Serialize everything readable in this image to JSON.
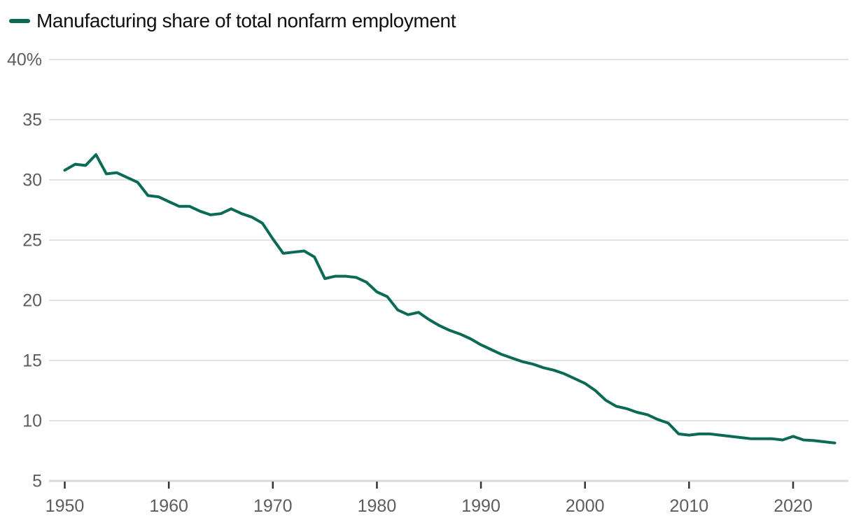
{
  "colors": {
    "line": "#0b6a55",
    "grid": "#e2e2e2",
    "axis_line": "#d9d9d9",
    "tick": "#333333",
    "axis_text": "#5d5d5d",
    "title_text": "#0f0f0f",
    "background": "#ffffff"
  },
  "chart_data": {
    "type": "line",
    "title": "Manufacturing share of total nonfarm employment",
    "xlabel": "",
    "ylabel": "",
    "unit": "%",
    "grid": "horizontal",
    "legend_position": "top-left",
    "xlim": [
      1950,
      2024
    ],
    "ylim": [
      5,
      40
    ],
    "y_ticks": [
      40,
      35,
      30,
      25,
      20,
      15,
      10,
      5
    ],
    "y_tick_labels": [
      "40%",
      "35",
      "30",
      "25",
      "20",
      "15",
      "10",
      "5"
    ],
    "x_ticks": [
      1950,
      1960,
      1970,
      1980,
      1990,
      2000,
      2010,
      2020
    ],
    "x_tick_labels": [
      "1950",
      "1960",
      "1970",
      "1980",
      "1990",
      "2000",
      "2010",
      "2020"
    ],
    "series": [
      {
        "name": "Manufacturing share of total nonfarm employment",
        "x": [
          1950,
          1951,
          1952,
          1953,
          1954,
          1955,
          1956,
          1957,
          1958,
          1959,
          1960,
          1961,
          1962,
          1963,
          1964,
          1965,
          1966,
          1967,
          1968,
          1969,
          1970,
          1971,
          1972,
          1973,
          1974,
          1975,
          1976,
          1977,
          1978,
          1979,
          1980,
          1981,
          1982,
          1983,
          1984,
          1985,
          1986,
          1987,
          1988,
          1989,
          1990,
          1991,
          1992,
          1993,
          1994,
          1995,
          1996,
          1997,
          1998,
          1999,
          2000,
          2001,
          2002,
          2003,
          2004,
          2005,
          2006,
          2007,
          2008,
          2009,
          2010,
          2011,
          2012,
          2013,
          2014,
          2015,
          2016,
          2017,
          2018,
          2019,
          2020,
          2021,
          2022,
          2023,
          2024
        ],
        "values": [
          30.8,
          31.3,
          31.2,
          32.1,
          30.5,
          30.6,
          30.2,
          29.8,
          28.7,
          28.6,
          28.2,
          27.8,
          27.8,
          27.4,
          27.1,
          27.2,
          27.6,
          27.2,
          26.9,
          26.4,
          25.1,
          23.9,
          24.0,
          24.1,
          23.6,
          21.8,
          22.0,
          22.0,
          21.9,
          21.5,
          20.7,
          20.3,
          19.2,
          18.8,
          19.0,
          18.4,
          17.9,
          17.5,
          17.2,
          16.8,
          16.3,
          15.9,
          15.5,
          15.2,
          14.9,
          14.7,
          14.4,
          14.2,
          13.9,
          13.5,
          13.1,
          12.5,
          11.7,
          11.2,
          11.0,
          10.7,
          10.5,
          10.1,
          9.8,
          8.9,
          8.8,
          8.9,
          8.9,
          8.8,
          8.7,
          8.6,
          8.5,
          8.5,
          8.5,
          8.4,
          8.7,
          8.4,
          8.35,
          8.25,
          8.15
        ]
      }
    ]
  }
}
